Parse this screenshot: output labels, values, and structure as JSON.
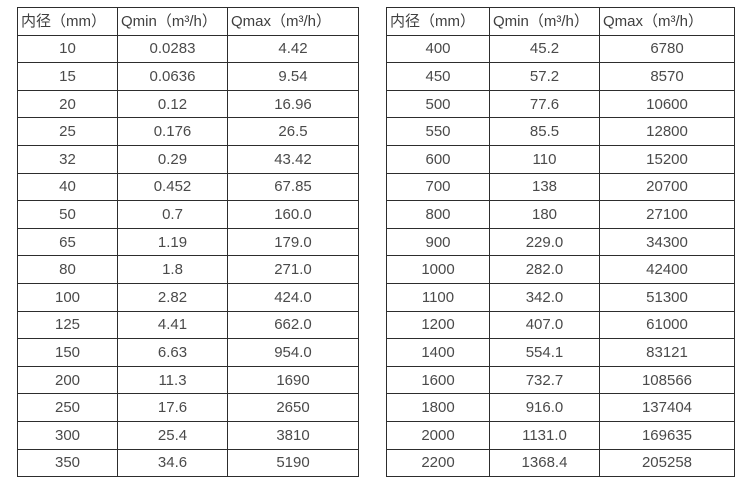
{
  "page": {
    "background": "#ffffff",
    "border_color": "#2d2d2d",
    "header_text_color": "#3f3f3f",
    "cell_text_color": "#4a4a4a"
  },
  "tables": [
    {
      "name": "flow-table-small-diameters",
      "columns": [
        "内径（mm）",
        "Qmin（m³/h）",
        "Qmax（m³/h）"
      ],
      "rows": [
        [
          "10",
          "0.0283",
          "4.42"
        ],
        [
          "15",
          "0.0636",
          "9.54"
        ],
        [
          "20",
          "0.12",
          "16.96"
        ],
        [
          "25",
          "0.176",
          "26.5"
        ],
        [
          "32",
          "0.29",
          "43.42"
        ],
        [
          "40",
          "0.452",
          "67.85"
        ],
        [
          "50",
          "0.7",
          "160.0"
        ],
        [
          "65",
          "1.19",
          "179.0"
        ],
        [
          "80",
          "1.8",
          "271.0"
        ],
        [
          "100",
          "2.82",
          "424.0"
        ],
        [
          "125",
          "4.41",
          "662.0"
        ],
        [
          "150",
          "6.63",
          "954.0"
        ],
        [
          "200",
          "11.3",
          "1690"
        ],
        [
          "250",
          "17.6",
          "2650"
        ],
        [
          "300",
          "25.4",
          "3810"
        ],
        [
          "350",
          "34.6",
          "5190"
        ]
      ]
    },
    {
      "name": "flow-table-large-diameters",
      "columns": [
        "内径（mm）",
        "Qmin（m³/h）",
        "Qmax（m³/h）"
      ],
      "rows": [
        [
          "400",
          "45.2",
          "6780"
        ],
        [
          "450",
          "57.2",
          "8570"
        ],
        [
          "500",
          "77.6",
          "10600"
        ],
        [
          "550",
          "85.5",
          "12800"
        ],
        [
          "600",
          "110",
          "15200"
        ],
        [
          "700",
          "138",
          "20700"
        ],
        [
          "800",
          "180",
          "27100"
        ],
        [
          "900",
          "229.0",
          "34300"
        ],
        [
          "1000",
          "282.0",
          "42400"
        ],
        [
          "1100",
          "342.0",
          "51300"
        ],
        [
          "1200",
          "407.0",
          "61000"
        ],
        [
          "1400",
          "554.1",
          "83121"
        ],
        [
          "1600",
          "732.7",
          "108566"
        ],
        [
          "1800",
          "916.0",
          "137404"
        ],
        [
          "2000",
          "1131.0",
          "169635"
        ],
        [
          "2200",
          "1368.4",
          "205258"
        ]
      ]
    }
  ]
}
